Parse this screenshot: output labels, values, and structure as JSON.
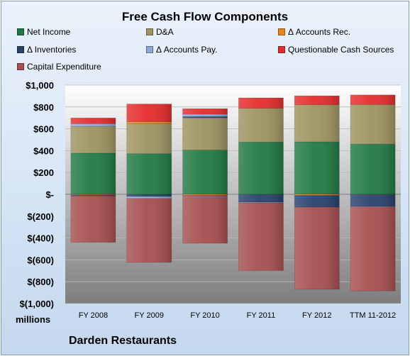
{
  "chart_data": {
    "type": "bar",
    "stacked": true,
    "title": "Free Cash Flow Components",
    "ylabel": "",
    "units": "millions",
    "company": "Darden Restaurants",
    "ylim": [
      -1000,
      1000
    ],
    "yticks": [
      1000,
      800,
      600,
      400,
      200,
      0,
      -200,
      -400,
      -600,
      -800,
      -1000
    ],
    "ytick_labels": [
      "$1,000",
      "$800",
      "$600",
      "$400",
      "$200",
      "$-",
      "$(200)",
      "$(400)",
      "$(600)",
      "$(800)",
      "$(1,000)"
    ],
    "categories": [
      "FY 2008",
      "FY 2009",
      "FY 2010",
      "FY 2011",
      "FY 2012",
      "TTM 11-2012"
    ],
    "legend_position": "top",
    "series": [
      {
        "name": "Net Income",
        "color": "#217a45",
        "values": [
          377,
          372,
          405,
          478,
          480,
          460
        ]
      },
      {
        "name": "D&A",
        "color": "#9e9460",
        "values": [
          245,
          275,
          295,
          310,
          340,
          362
        ]
      },
      {
        "name": "Δ Accounts Rec.",
        "color": "#e8861c",
        "values": [
          -5,
          18,
          -8,
          0,
          -10,
          -2
        ]
      },
      {
        "name": "Δ Inventories",
        "color": "#29416b",
        "values": [
          -10,
          -20,
          12,
          -72,
          -108,
          -108
        ]
      },
      {
        "name": "Δ Accounts Pay.",
        "color": "#8ea8d6",
        "values": [
          25,
          -18,
          22,
          -6,
          0,
          -4
        ]
      },
      {
        "name": "Questionable Cash Sources",
        "color": "#e52c2c",
        "values": [
          52,
          162,
          50,
          95,
          82,
          88
        ]
      },
      {
        "name": "Capital Expenditure",
        "color": "#a64f4f",
        "values": [
          -425,
          -585,
          -440,
          -620,
          -752,
          -770
        ]
      }
    ]
  }
}
